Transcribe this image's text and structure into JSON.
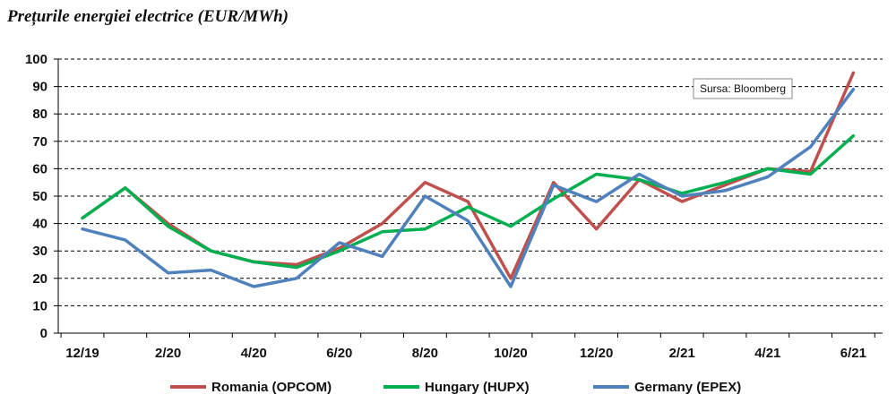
{
  "chart_data": {
    "type": "line",
    "title": "Prețurile energiei electrice (EUR/MWh)",
    "xlabel": "",
    "ylabel": "",
    "x": [
      "12/19",
      "1/20",
      "2/20",
      "3/20",
      "4/20",
      "5/20",
      "6/20",
      "7/20",
      "8/20",
      "9/20",
      "10/20",
      "11/20",
      "12/20",
      "1/21",
      "2/21",
      "3/21",
      "4/21",
      "5/21",
      "6/21"
    ],
    "x_tick_labels": [
      "12/19",
      "2/20",
      "4/20",
      "6/20",
      "8/20",
      "10/20",
      "12/20",
      "2/21",
      "4/21",
      "6/21"
    ],
    "ylim": [
      0,
      100
    ],
    "y_ticks": [
      0,
      10,
      20,
      30,
      40,
      50,
      60,
      70,
      80,
      90,
      100
    ],
    "grid": "horizontal dashed",
    "legend_position": "bottom",
    "annotation": "Sursa: Bloomberg",
    "series": [
      {
        "name": "Romania (OPCOM)",
        "color": "#c0504d",
        "values": [
          42,
          53,
          40,
          30,
          26,
          25,
          31,
          40,
          55,
          48,
          20,
          55,
          38,
          56,
          48,
          54,
          60,
          59,
          95
        ]
      },
      {
        "name": "Hungary (HUPX)",
        "color": "#00b050",
        "values": [
          42,
          53,
          39,
          30,
          26,
          24,
          30,
          37,
          38,
          46,
          39,
          49,
          58,
          56,
          51,
          55,
          60,
          58,
          72
        ]
      },
      {
        "name": "Germany (EPEX)",
        "color": "#4f81bd",
        "values": [
          38,
          34,
          22,
          23,
          17,
          20,
          33,
          28,
          50,
          41,
          17,
          54,
          48,
          58,
          50,
          52,
          57,
          68,
          89
        ]
      }
    ]
  }
}
